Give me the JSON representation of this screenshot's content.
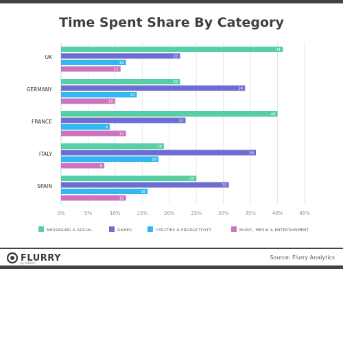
{
  "chart_data": {
    "type": "bar",
    "orientation": "horizontal",
    "title": "Time Spent Share By Category",
    "categories": [
      "UK",
      "GERMANY",
      "FRANCE",
      "ITALY",
      "SPAIN"
    ],
    "series": [
      {
        "name": "MESSAGING & SOCIAL",
        "color": "#56cfa6",
        "values": [
          41,
          22,
          40,
          19,
          25
        ]
      },
      {
        "name": "GAMES",
        "color": "#6c6fd1",
        "values": [
          22,
          34,
          23,
          36,
          31
        ]
      },
      {
        "name": "UTILITIES & PRODUCTIVITY",
        "color": "#32b7f0",
        "values": [
          12,
          14,
          9,
          18,
          16
        ]
      },
      {
        "name": "MUSIC, MEDIA & ENTERTAINMENT",
        "color": "#cc73c1",
        "values": [
          11,
          10,
          12,
          8,
          12
        ]
      }
    ],
    "xlim": [
      0,
      45
    ],
    "xticks": [
      "0%",
      "5%",
      "10%",
      "15%",
      "20%",
      "25%",
      "30%",
      "35%",
      "40%",
      "45%"
    ],
    "grid": true,
    "legend_position": "bottom"
  },
  "footer": {
    "brand": "FLURRY",
    "brand_sub": "by YAHOO!",
    "source": "Source: Flurry Analytics"
  }
}
